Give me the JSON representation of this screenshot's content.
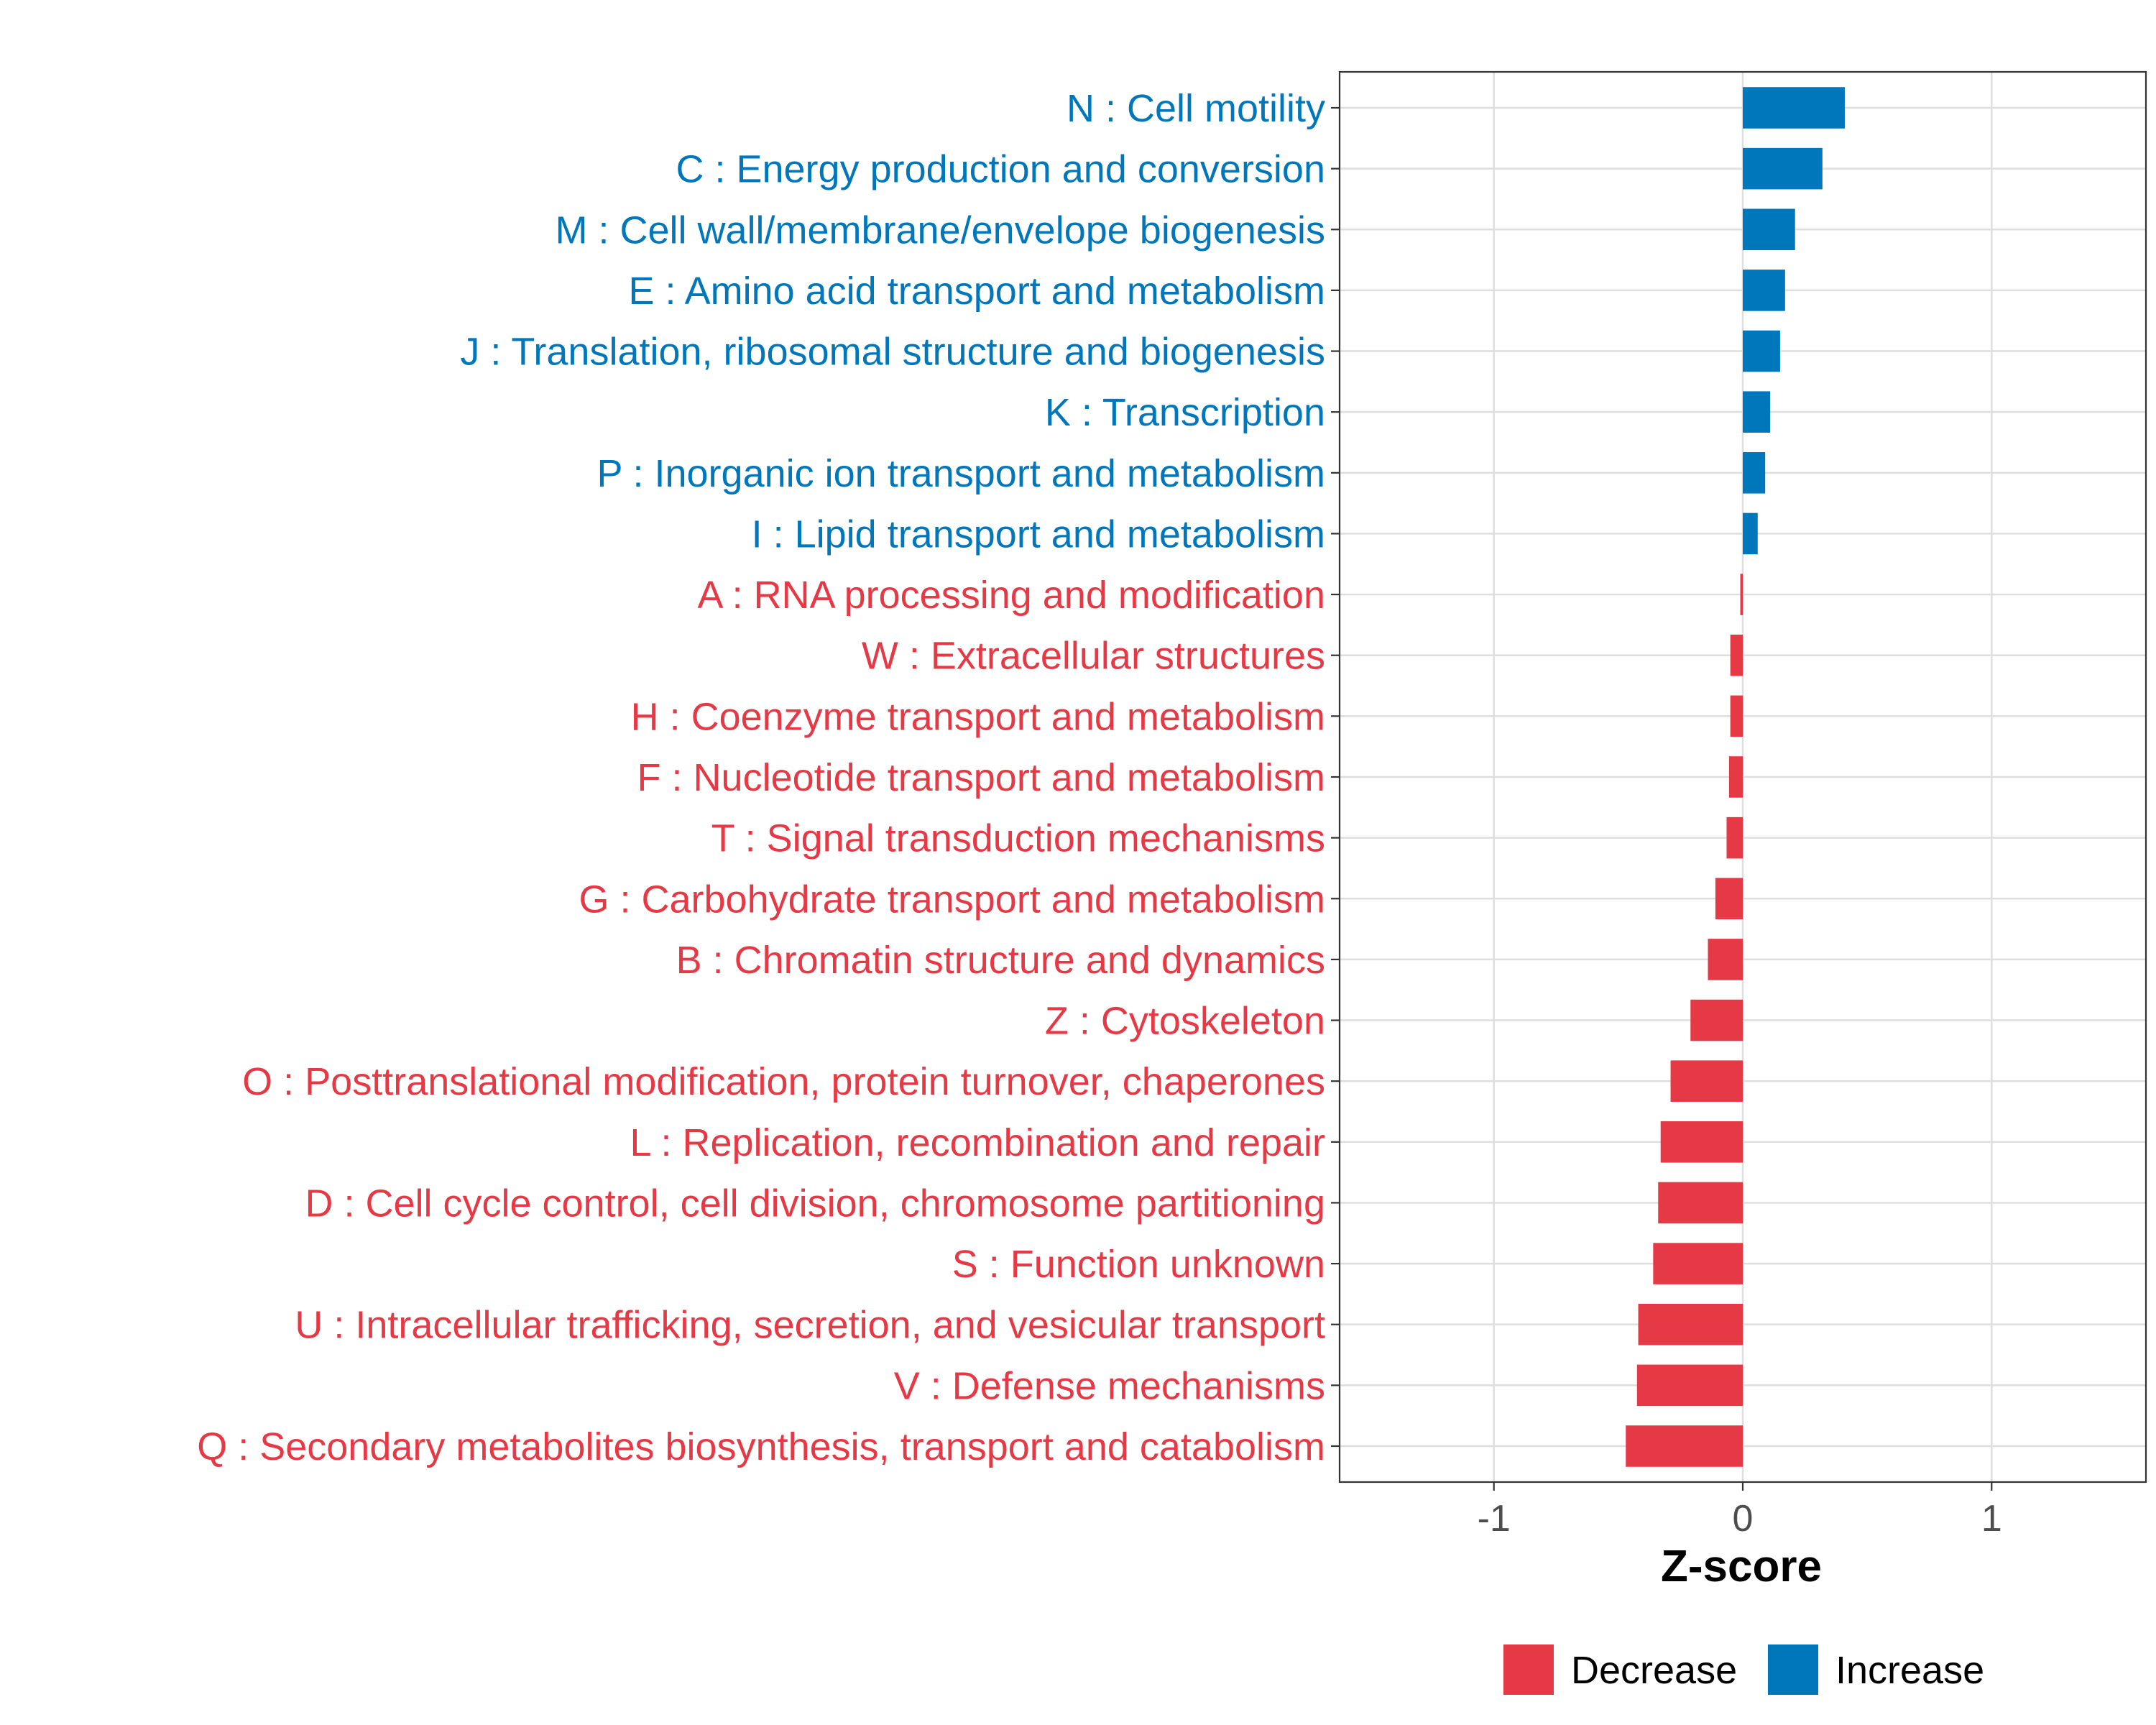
{
  "chart_data": {
    "type": "bar",
    "orientation": "horizontal",
    "xlabel": "Z-score",
    "ylabel": "",
    "xlim": [
      -1.62,
      1.62
    ],
    "x_ticks": [
      -1,
      0,
      1
    ],
    "x_tick_labels": [
      "-1",
      "0",
      "1"
    ],
    "grid": true,
    "legend_position": "bottom",
    "colors": {
      "Decrease": "#e63946",
      "Increase": "#0077bb"
    },
    "legend": [
      {
        "label": "Decrease",
        "color": "#e63946"
      },
      {
        "label": "Increase",
        "color": "#0077bb"
      }
    ],
    "bars": [
      {
        "label": "N : Cell motility",
        "value": 0.41,
        "direction": "Increase"
      },
      {
        "label": "C : Energy production and conversion",
        "value": 0.32,
        "direction": "Increase"
      },
      {
        "label": "M : Cell wall/membrane/envelope biogenesis",
        "value": 0.21,
        "direction": "Increase"
      },
      {
        "label": "E : Amino acid transport and metabolism",
        "value": 0.17,
        "direction": "Increase"
      },
      {
        "label": "J : Translation, ribosomal structure and biogenesis",
        "value": 0.15,
        "direction": "Increase"
      },
      {
        "label": "K : Transcription",
        "value": 0.11,
        "direction": "Increase"
      },
      {
        "label": "P : Inorganic ion transport and metabolism",
        "value": 0.09,
        "direction": "Increase"
      },
      {
        "label": "I : Lipid transport and metabolism",
        "value": 0.06,
        "direction": "Increase"
      },
      {
        "label": "A : RNA processing and modification",
        "value": -0.01,
        "direction": "Decrease"
      },
      {
        "label": "W : Extracellular structures",
        "value": -0.05,
        "direction": "Decrease"
      },
      {
        "label": "H : Coenzyme transport and metabolism",
        "value": -0.05,
        "direction": "Decrease"
      },
      {
        "label": "F : Nucleotide transport and metabolism",
        "value": -0.055,
        "direction": "Decrease"
      },
      {
        "label": "T : Signal transduction mechanisms",
        "value": -0.065,
        "direction": "Decrease"
      },
      {
        "label": "G : Carbohydrate transport and metabolism",
        "value": -0.11,
        "direction": "Decrease"
      },
      {
        "label": "B : Chromatin structure and dynamics",
        "value": -0.14,
        "direction": "Decrease"
      },
      {
        "label": "Z : Cytoskeleton",
        "value": -0.21,
        "direction": "Decrease"
      },
      {
        "label": "O : Posttranslational modification, protein turnover, chaperones",
        "value": -0.29,
        "direction": "Decrease"
      },
      {
        "label": "L : Replication, recombination and repair",
        "value": -0.33,
        "direction": "Decrease"
      },
      {
        "label": "D : Cell cycle control, cell division, chromosome partitioning",
        "value": -0.34,
        "direction": "Decrease"
      },
      {
        "label": "S : Function unknown",
        "value": -0.36,
        "direction": "Decrease"
      },
      {
        "label": "U : Intracellular trafficking, secretion, and vesicular transport",
        "value": -0.42,
        "direction": "Decrease"
      },
      {
        "label": "V : Defense mechanisms",
        "value": -0.425,
        "direction": "Decrease"
      },
      {
        "label": "Q : Secondary metabolites biosynthesis, transport and catabolism",
        "value": -0.47,
        "direction": "Decrease"
      }
    ]
  }
}
